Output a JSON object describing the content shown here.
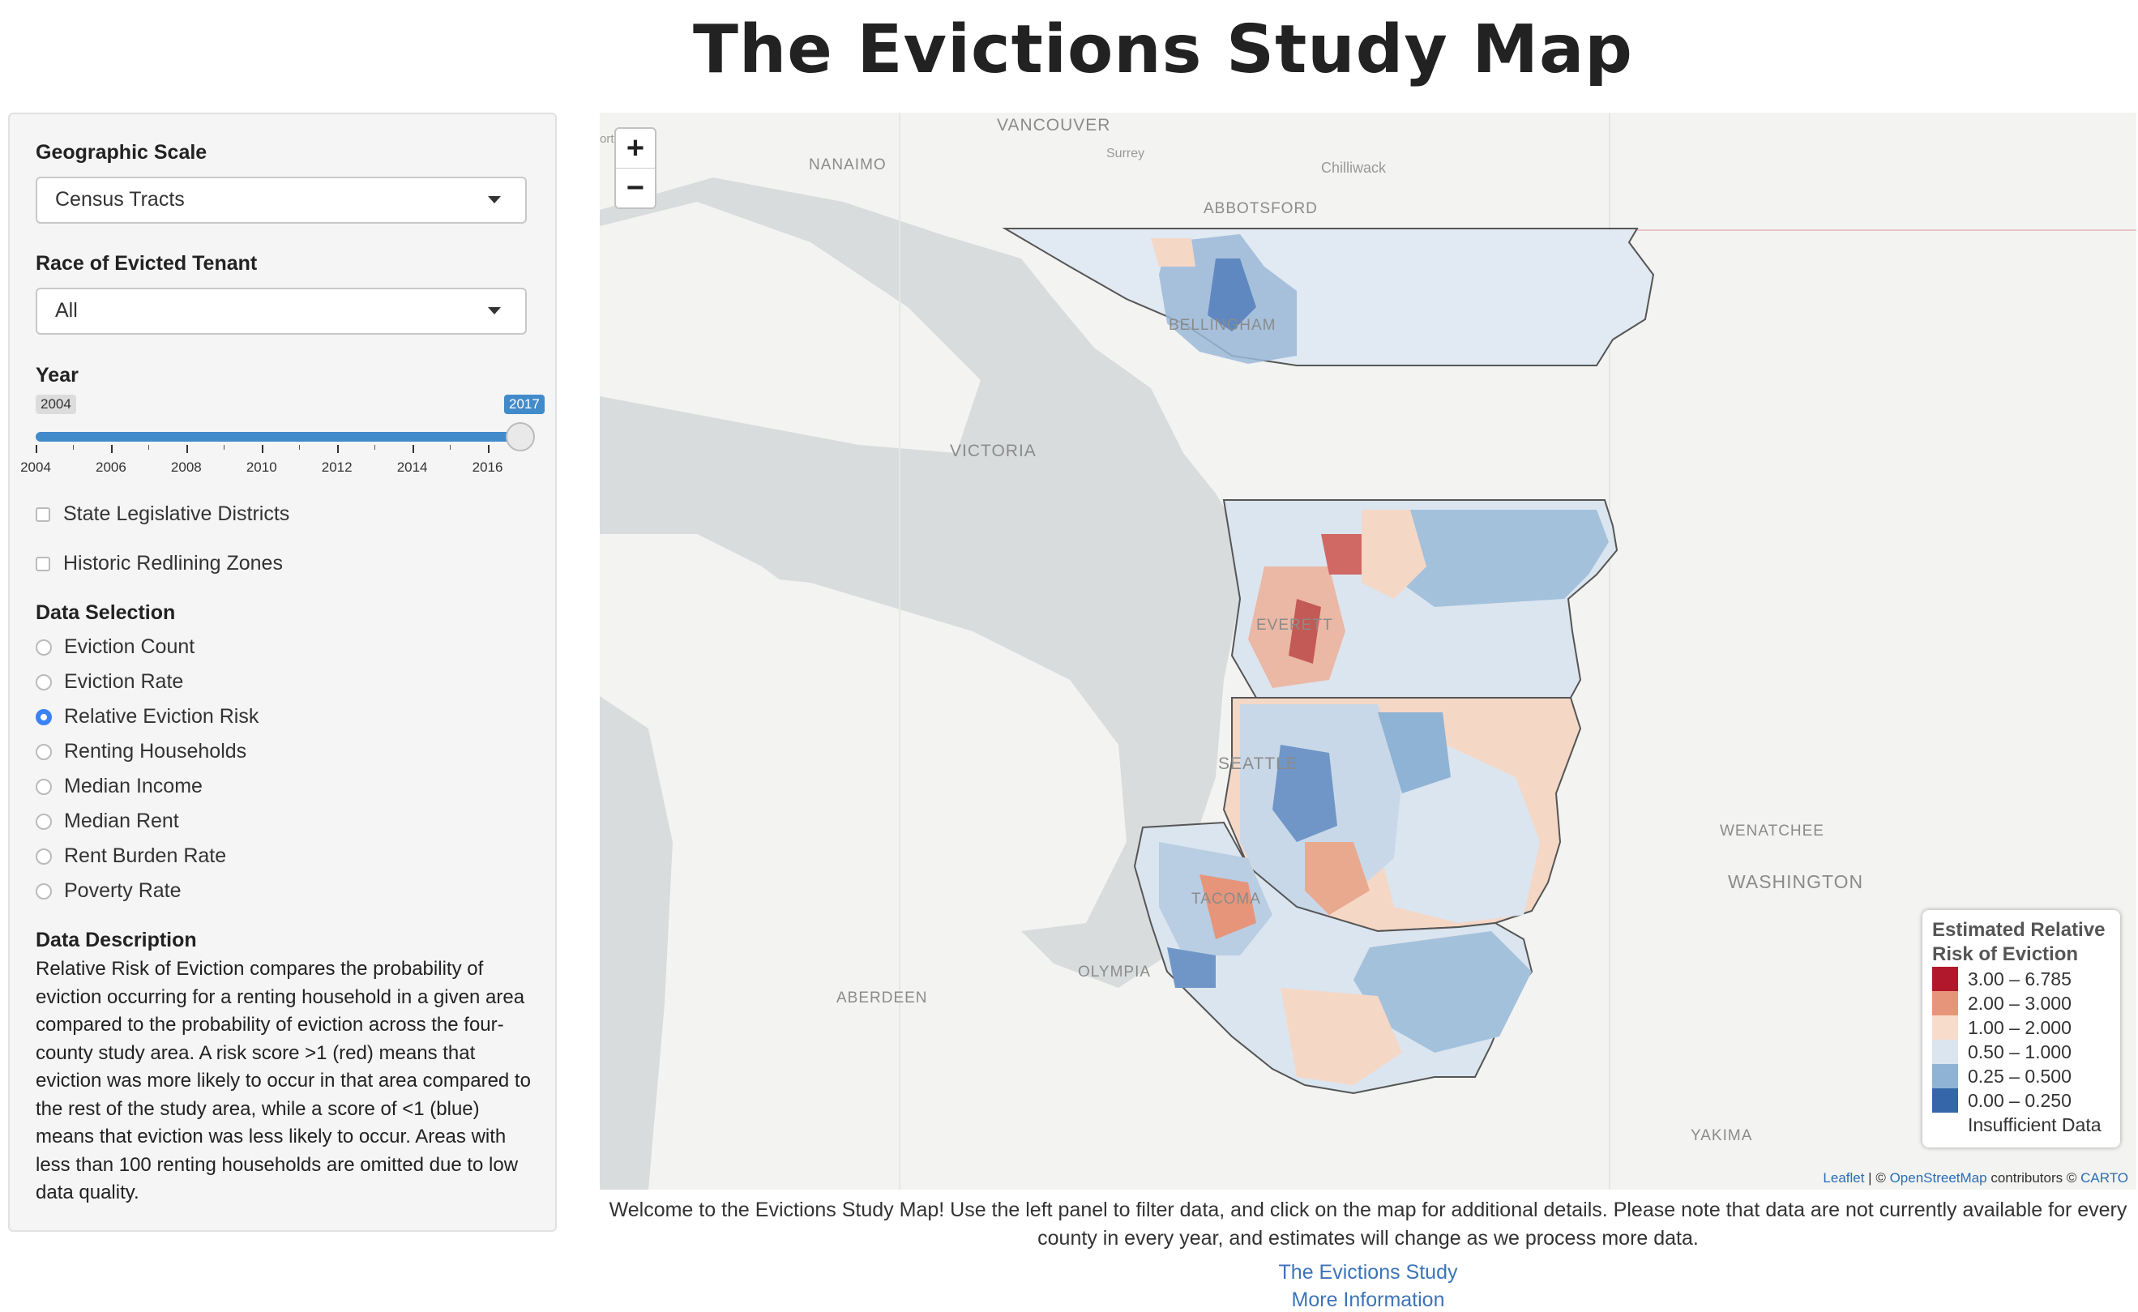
{
  "title": "The Evictions Study Map",
  "sidebar": {
    "geo_label": "Geographic Scale",
    "geo_value": "Census Tracts",
    "race_label": "Race of Evicted Tenant",
    "race_value": "All",
    "year_label": "Year",
    "year_min": "2004",
    "year_max": "2017",
    "year_selected": "2017",
    "year_ticks": [
      "2004",
      "2006",
      "2008",
      "2010",
      "2012",
      "2014",
      "2016"
    ],
    "checkboxes": [
      {
        "label": "State Legislative Districts",
        "checked": false
      },
      {
        "label": "Historic Redlining Zones",
        "checked": false
      }
    ],
    "data_selection_label": "Data Selection",
    "data_options": [
      {
        "label": "Eviction Count",
        "selected": false
      },
      {
        "label": "Eviction Rate",
        "selected": false
      },
      {
        "label": "Relative Eviction Risk",
        "selected": true
      },
      {
        "label": "Renting Households",
        "selected": false
      },
      {
        "label": "Median Income",
        "selected": false
      },
      {
        "label": "Median Rent",
        "selected": false
      },
      {
        "label": "Rent Burden Rate",
        "selected": false
      },
      {
        "label": "Poverty Rate",
        "selected": false
      }
    ],
    "desc_label": "Data Description",
    "description": "Relative Risk of Eviction compares the probability of eviction occurring for a renting household in a given area compared to the probability of eviction across the four-county study area. A risk score >1 (red) means that eviction was more likely to occur in that area compared to the rest of the study area, while a score of <1 (blue) means that eviction was less likely to occur. Areas with less than 100 renting households are omitted due to low data quality."
  },
  "map": {
    "zoom_in": "+",
    "zoom_out": "−",
    "places": {
      "vancouver": "VANCOUVER",
      "surrey": "Surrey",
      "nanaimo": "NANAIMO",
      "chilliwack": "Chilliwack",
      "abbotsford": "ABBOTSFORD",
      "bellingham": "BELLINGHAM",
      "victoria": "VICTORIA",
      "everett": "EVERETT",
      "seattle": "SEATTLE",
      "tacoma": "TACOMA",
      "olympia": "OLYMPIA",
      "aberdeen": "ABERDEEN",
      "wenatchee": "WENATCHEE",
      "washington": "WASHINGTON",
      "yakima": "YAKIMA",
      "ort": "ort"
    },
    "legend": {
      "title": "Estimated Relative Risk of Eviction",
      "items": [
        {
          "label": "3.00 – 6.785",
          "color": "#b2182b"
        },
        {
          "label": "2.00 – 3.000",
          "color": "#e6957a"
        },
        {
          "label": "1.00 – 2.000",
          "color": "#f7dccc"
        },
        {
          "label": "0.50 – 1.000",
          "color": "#dbe5ef"
        },
        {
          "label": "0.25 – 0.500",
          "color": "#8fb3d4"
        },
        {
          "label": "0.00 – 0.250",
          "color": "#3466a9"
        },
        {
          "label": "Insufficient Data",
          "color": "#ffffff"
        }
      ]
    },
    "attribution": {
      "leaflet": "Leaflet",
      "sep1": " | © ",
      "osm": "OpenStreetMap",
      "contrib": " contributors © ",
      "carto": "CARTO"
    }
  },
  "footer": {
    "welcome": "Welcome to the Evictions Study Map! Use the left panel to filter data, and click on the map for additional details. Please note that data are not currently available for every county in every year, and estimates will change as we process more data.",
    "link1": "The Evictions Study",
    "link2": "More Information"
  }
}
